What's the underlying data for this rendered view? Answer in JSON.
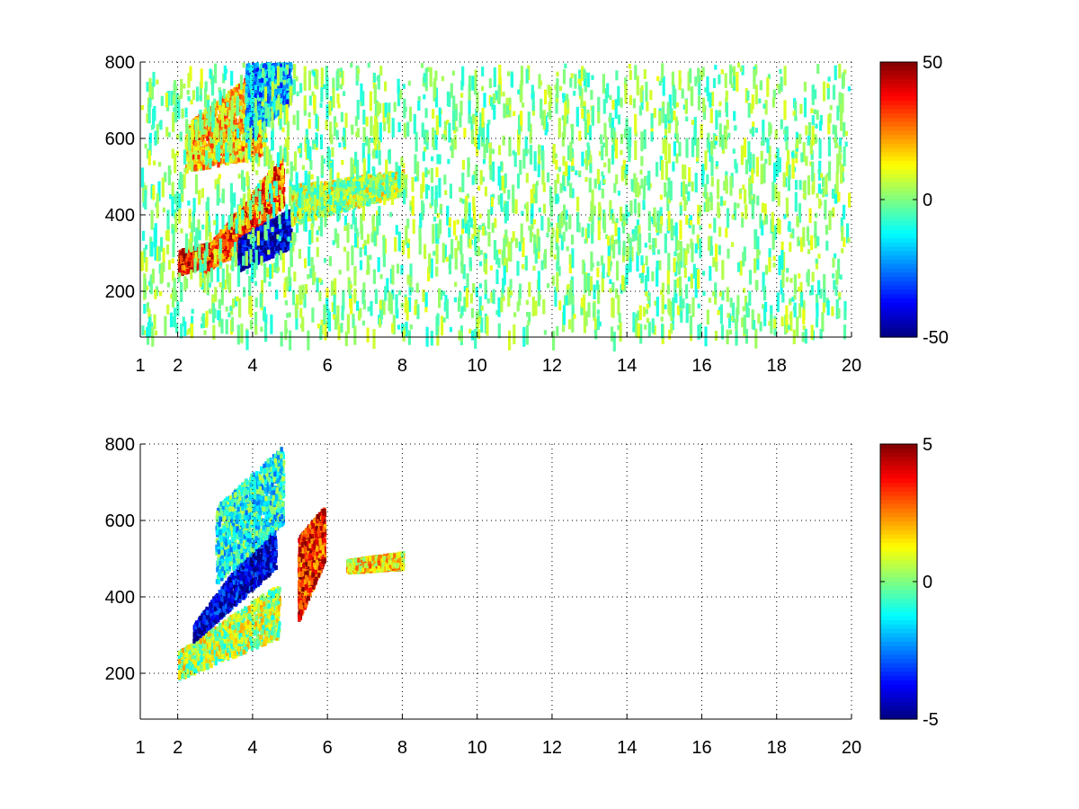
{
  "chart_data": [
    {
      "type": "heatmap",
      "title": "",
      "xlabel": "",
      "ylabel": "",
      "xlim": [
        1,
        20
      ],
      "ylim": [
        80,
        800
      ],
      "xticks": [
        1,
        2,
        4,
        6,
        8,
        10,
        12,
        14,
        16,
        18,
        20
      ],
      "xtick_labels": [
        "1",
        "2",
        "4",
        "6",
        "8",
        "10",
        "12",
        "14",
        "16",
        "18",
        "20"
      ],
      "yticks": [
        200,
        400,
        600,
        800
      ],
      "ytick_labels": [
        "200",
        "400",
        "600",
        "800"
      ],
      "grid": true,
      "colormap": "jet",
      "clim": [
        -50,
        50
      ],
      "colorbar_ticks": [
        50,
        0,
        -50
      ],
      "colorbar_labels": [
        "50",
        "0",
        "-50"
      ],
      "structures": [
        {
          "region": "low ridge",
          "x": [
            2.0,
            3.6
          ],
          "y_start": [
            250,
            300
          ],
          "y_end": [
            310,
            350
          ],
          "value": 35
        },
        {
          "region": "main ridge warm edge",
          "x": [
            2.6,
            4.8
          ],
          "y_start": [
            240,
            430
          ],
          "y_end": [
            300,
            560
          ],
          "value": 30
        },
        {
          "region": "main ridge cold core",
          "x": [
            3.6,
            5.0
          ],
          "y_start": [
            260,
            320
          ],
          "y_end": [
            340,
            420
          ],
          "value": -45
        },
        {
          "region": "upper band",
          "x": [
            2.2,
            4.3
          ],
          "y_start": [
            520,
            560
          ],
          "y_end": [
            640,
            800
          ],
          "value": 18
        },
        {
          "region": "upper band cold edge",
          "x": [
            3.8,
            5.0
          ],
          "y_start": [
            600,
            700
          ],
          "y_end": [
            800,
            800
          ],
          "value": -20
        },
        {
          "region": "diffuse tail",
          "x": [
            5.0,
            8.0
          ],
          "y_start": [
            380,
            460
          ],
          "y_end": [
            480,
            520
          ],
          "value": 5
        },
        {
          "region": "scattered noise",
          "x": [
            1,
            20
          ],
          "y_start": [
            80,
            80
          ],
          "y_end": [
            800,
            800
          ],
          "value": 0
        }
      ]
    },
    {
      "type": "heatmap",
      "title": "",
      "xlabel": "",
      "ylabel": "",
      "xlim": [
        1,
        20
      ],
      "ylim": [
        80,
        800
      ],
      "xticks": [
        1,
        2,
        4,
        6,
        8,
        10,
        12,
        14,
        16,
        18,
        20
      ],
      "xtick_labels": [
        "1",
        "2",
        "4",
        "6",
        "8",
        "10",
        "12",
        "14",
        "16",
        "18",
        "20"
      ],
      "yticks": [
        200,
        400,
        600,
        800
      ],
      "ytick_labels": [
        "200",
        "400",
        "600",
        "800"
      ],
      "grid": true,
      "colormap": "jet",
      "clim": [
        -5,
        5
      ],
      "colorbar_ticks": [
        5,
        0,
        -5
      ],
      "colorbar_labels": [
        "5",
        "0",
        "-5"
      ],
      "structures": [
        {
          "region": "lower band",
          "x": [
            2.0,
            4.7
          ],
          "y_start": [
            190,
            300
          ],
          "y_end": [
            260,
            440
          ],
          "value": 0.5
        },
        {
          "region": "cold ridge",
          "x": [
            2.4,
            4.6
          ],
          "y_start": [
            290,
            480
          ],
          "y_end": [
            330,
            620
          ],
          "value": -4.2
        },
        {
          "region": "upper cloud",
          "x": [
            3.0,
            4.8
          ],
          "y_start": [
            440,
            600
          ],
          "y_end": [
            640,
            800
          ],
          "value": -1.0
        },
        {
          "region": "warm cluster",
          "x": [
            5.2,
            5.9
          ],
          "y_start": [
            340,
            500
          ],
          "y_end": [
            560,
            640
          ],
          "value": 3.5
        },
        {
          "region": "small patches",
          "x": [
            6.5,
            8.0
          ],
          "y_start": [
            470,
            480
          ],
          "y_end": [
            500,
            520
          ],
          "value": 1.5
        }
      ]
    }
  ]
}
